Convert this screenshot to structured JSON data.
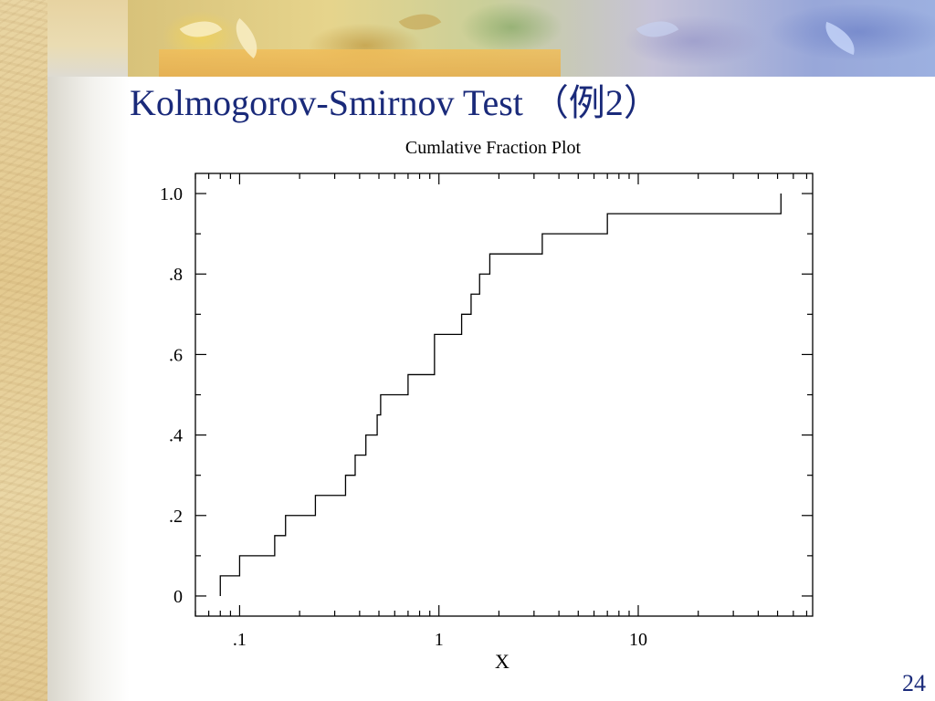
{
  "slide": {
    "title": "Kolmogorov-Smirnov Test （例2）",
    "page_number": "24",
    "title_color": "#1a2a7a"
  },
  "chart_data": {
    "type": "line",
    "step": true,
    "title": "Cumlative Fraction Plot",
    "xlabel": "X",
    "ylabel": "",
    "xscale": "log",
    "xlim": [
      0.06,
      75
    ],
    "ylim": [
      -0.05,
      1.05
    ],
    "grid": false,
    "x_ticks": [
      {
        "value": 0.1,
        "label": ".1"
      },
      {
        "value": 1,
        "label": "1"
      },
      {
        "value": 10,
        "label": "10"
      }
    ],
    "y_ticks": [
      {
        "value": 0,
        "label": "0"
      },
      {
        "value": 0.2,
        "label": ".2"
      },
      {
        "value": 0.4,
        "label": ".4"
      },
      {
        "value": 0.6,
        "label": ".6"
      },
      {
        "value": 0.8,
        "label": ".8"
      },
      {
        "value": 1.0,
        "label": "1.0"
      }
    ],
    "series": [
      {
        "x": [
          0.08,
          0.1,
          0.15,
          0.17,
          0.24,
          0.34,
          0.38,
          0.43,
          0.49,
          0.51,
          0.7,
          0.95,
          1.3,
          1.45,
          1.6,
          1.8,
          3.3,
          7.0,
          52
        ],
        "y": [
          0.05,
          0.1,
          0.15,
          0.2,
          0.25,
          0.3,
          0.35,
          0.4,
          0.45,
          0.5,
          0.55,
          0.65,
          0.7,
          0.75,
          0.8,
          0.85,
          0.9,
          0.95,
          1.0
        ]
      }
    ]
  }
}
